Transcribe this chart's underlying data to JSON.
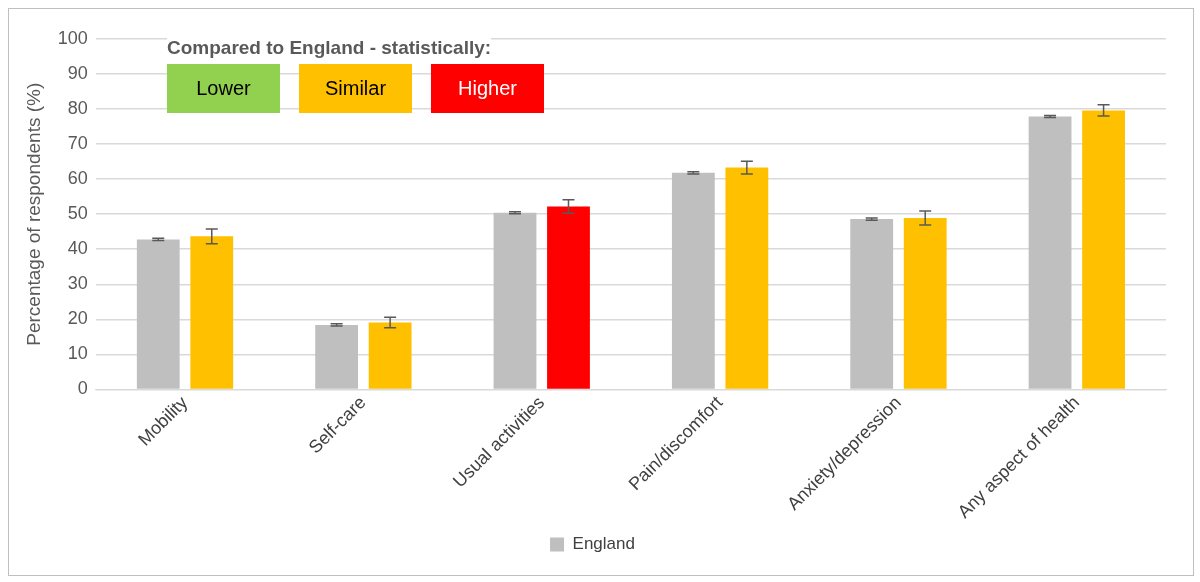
{
  "chart_data": {
    "type": "bar",
    "ylabel": "Percentage of respondents (%)",
    "categories": [
      "Mobility",
      "Self-care",
      "Usual activities",
      "Pain/discomfort",
      "Anxiety/depression",
      "Any aspect of health"
    ],
    "series": [
      {
        "name": "England",
        "color": "#bfbfbf",
        "values": [
          42.8,
          18.4,
          50.4,
          61.8,
          48.6,
          77.9
        ],
        "errors": [
          0.3,
          0.3,
          0.3,
          0.3,
          0.3,
          0.3
        ]
      },
      {
        "colors": [
          "#ffc000",
          "#ffc000",
          "#ff0000",
          "#ffc000",
          "#ffc000",
          "#ffc000"
        ],
        "values": [
          43.7,
          19.1,
          52.2,
          63.3,
          48.9,
          79.6
        ],
        "errors": [
          2.1,
          1.5,
          1.9,
          1.8,
          2.0,
          1.6
        ]
      }
    ],
    "annotations": [
      "Compared to England - statistically:",
      "Lower",
      "Similar",
      "Higher"
    ],
    "ylim": [
      0,
      100
    ],
    "yticks": [
      0,
      10,
      20,
      30,
      40,
      50,
      60,
      70,
      80,
      90,
      100
    ],
    "grid": "y",
    "legend": "bottom"
  }
}
